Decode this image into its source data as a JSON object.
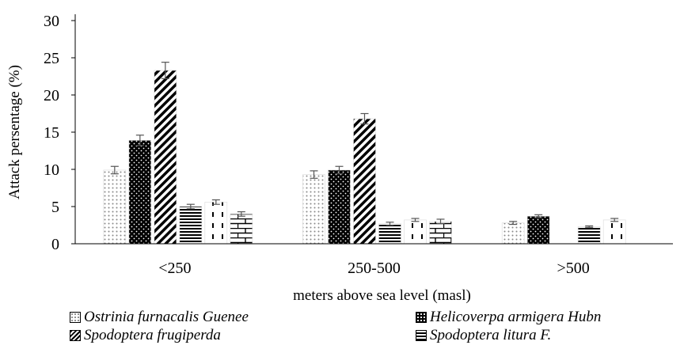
{
  "chart_data": {
    "type": "bar",
    "xlabel": "meters above sea level (masl)",
    "ylabel": "Attack persentage (%)",
    "ylim": [
      0,
      30
    ],
    "yticks": [
      0,
      5,
      10,
      15,
      20,
      25,
      30
    ],
    "categories": [
      "<250",
      "250-500",
      ">500"
    ],
    "error_bars": true,
    "legend_position": "bottom",
    "series": [
      {
        "name": "Ostrinia furnacalis Guenee",
        "pattern": "dots",
        "values": [
          9.9,
          9.3,
          2.8
        ],
        "errors": [
          0.5,
          0.5,
          0.2
        ]
      },
      {
        "name": "Helicoverpa armigera Hubn",
        "pattern": "black-dots",
        "values": [
          13.9,
          9.9,
          3.7
        ],
        "errors": [
          0.7,
          0.5,
          0.2
        ]
      },
      {
        "name": "Spodoptera frugiperda",
        "pattern": "diagonal",
        "values": [
          23.3,
          16.8,
          0
        ],
        "errors": [
          1.1,
          0.7,
          0
        ]
      },
      {
        "name": "Spodoptera litura F.",
        "pattern": "horizontal",
        "values": [
          5.0,
          2.7,
          2.3
        ],
        "errors": [
          0.3,
          0.2,
          0.1
        ]
      },
      {
        "name": "",
        "pattern": "dashes",
        "values": [
          5.6,
          3.2,
          3.2
        ],
        "errors": [
          0.3,
          0.2,
          0.2
        ]
      },
      {
        "name": "",
        "pattern": "brick",
        "values": [
          4.0,
          3.0,
          0
        ],
        "errors": [
          0.3,
          0.3,
          0
        ]
      }
    ]
  }
}
